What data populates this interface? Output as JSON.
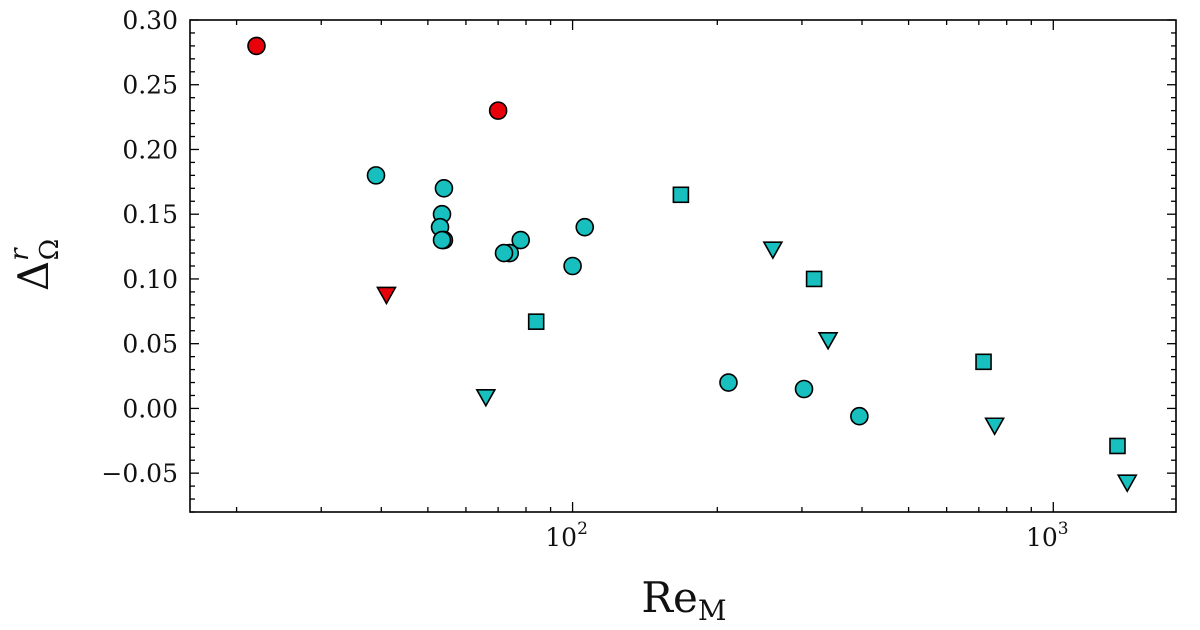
{
  "chart_data": {
    "type": "scatter",
    "xscale": "log",
    "xlim": [
      16,
      1800
    ],
    "ylim": [
      -0.08,
      0.3
    ],
    "xlabel": "Re",
    "xlabel_sub": "M",
    "ylabel": "Δ",
    "ylabel_sup": "r",
    "ylabel_sub": "Ω",
    "yticks": [
      -0.05,
      0.0,
      0.05,
      0.1,
      0.15,
      0.2,
      0.25,
      0.3
    ],
    "ytick_labels": [
      "−0.05",
      "0.00",
      "0.05",
      "0.10",
      "0.15",
      "0.20",
      "0.25",
      "0.30"
    ],
    "xtick_labels": [
      {
        "value": 100,
        "base": "10",
        "exp": "2"
      },
      {
        "value": 1000,
        "base": "10",
        "exp": "3"
      }
    ],
    "grid": false,
    "colors": {
      "red": "#e8000b",
      "cyan": "#17bfbf",
      "edge": "#000000"
    },
    "series": [
      {
        "marker": "circle",
        "color": "red",
        "points": [
          [
            22,
            0.28
          ],
          [
            70,
            0.23
          ]
        ]
      },
      {
        "marker": "triangle-down",
        "color": "red",
        "points": [
          [
            41,
            0.088
          ]
        ]
      },
      {
        "marker": "circle",
        "color": "cyan",
        "points": [
          [
            39,
            0.18
          ],
          [
            54,
            0.17
          ],
          [
            53.5,
            0.15
          ],
          [
            53,
            0.14
          ],
          [
            54,
            0.13
          ],
          [
            53.5,
            0.13
          ],
          [
            74,
            0.12
          ],
          [
            72,
            0.12
          ],
          [
            78,
            0.13
          ],
          [
            100,
            0.11
          ],
          [
            106,
            0.14
          ],
          [
            211,
            0.02
          ],
          [
            303,
            0.015
          ],
          [
            395,
            -0.006
          ]
        ]
      },
      {
        "marker": "square",
        "color": "cyan",
        "points": [
          [
            84,
            0.067
          ],
          [
            168,
            0.165
          ],
          [
            318,
            0.1
          ],
          [
            716,
            0.036
          ],
          [
            1360,
            -0.029
          ]
        ]
      },
      {
        "marker": "triangle-down",
        "color": "cyan",
        "points": [
          [
            66,
            0.009
          ],
          [
            261,
            0.123
          ],
          [
            340,
            0.053
          ],
          [
            755,
            -0.013
          ],
          [
            1425,
            -0.057
          ]
        ]
      }
    ]
  }
}
